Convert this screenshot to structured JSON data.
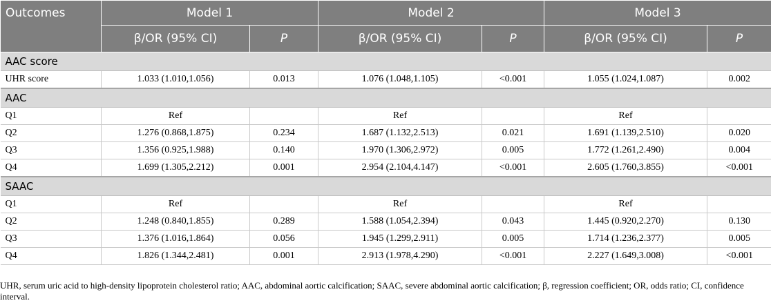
{
  "header": {
    "outcomes": "Outcomes",
    "models": [
      "Model 1",
      "Model 2",
      "Model 3"
    ],
    "sub_ci": "β/OR (95% CI)",
    "sub_p": "P"
  },
  "sections": [
    {
      "title": "AAC score",
      "rows": [
        {
          "label": "UHR score",
          "cells": [
            "1.033 (1.010,1.056)",
            "0.013",
            "1.076 (1.048,1.105)",
            "<0.001",
            "1.055 (1.024,1.087)",
            "0.002"
          ]
        }
      ]
    },
    {
      "title": "AAC",
      "rows": [
        {
          "label": "Q1",
          "cells": [
            "Ref",
            "",
            "Ref",
            "",
            "Ref",
            ""
          ]
        },
        {
          "label": "Q2",
          "cells": [
            "1.276 (0.868,1.875)",
            "0.234",
            "1.687 (1.132,2.513)",
            "0.021",
            "1.691 (1.139,2.510)",
            "0.020"
          ]
        },
        {
          "label": "Q3",
          "cells": [
            "1.356 (0.925,1.988)",
            "0.140",
            "1.970 (1.306,2.972)",
            "0.005",
            "1.772 (1.261,2.490)",
            "0.004"
          ]
        },
        {
          "label": "Q4",
          "cells": [
            "1.699 (1.305,2.212)",
            "0.001",
            "2.954 (2.104,4.147)",
            "<0.001",
            "2.605 (1.760,3.855)",
            "<0.001"
          ]
        }
      ]
    },
    {
      "title": "SAAC",
      "rows": [
        {
          "label": "Q1",
          "cells": [
            "Ref",
            "",
            "Ref",
            "",
            "Ref",
            ""
          ]
        },
        {
          "label": "Q2",
          "cells": [
            "1.248 (0.840,1.855)",
            "0.289",
            "1.588 (1.054,2.394)",
            "0.043",
            "1.445 (0.920,2.270)",
            "0.130"
          ]
        },
        {
          "label": "Q3",
          "cells": [
            "1.376 (1.016,1.864)",
            "0.056",
            "1.945 (1.299,2.911)",
            "0.005",
            "1.714 (1.236,2.377)",
            "0.005"
          ]
        },
        {
          "label": "Q4",
          "cells": [
            "1.826 (1.344,2.481)",
            "0.001",
            "2.913 (1.978,4.290)",
            "<0.001",
            "2.227 (1.649,3.008)",
            "<0.001"
          ]
        }
      ]
    }
  ],
  "footnote": "UHR, serum uric acid to high-density lipoprotein cholesterol ratio; AAC, abdominal aortic calcification; SAAC, severe abdominal aortic calcification; β, regression coefficient; OR, odds ratio; CI, confidence interval."
}
